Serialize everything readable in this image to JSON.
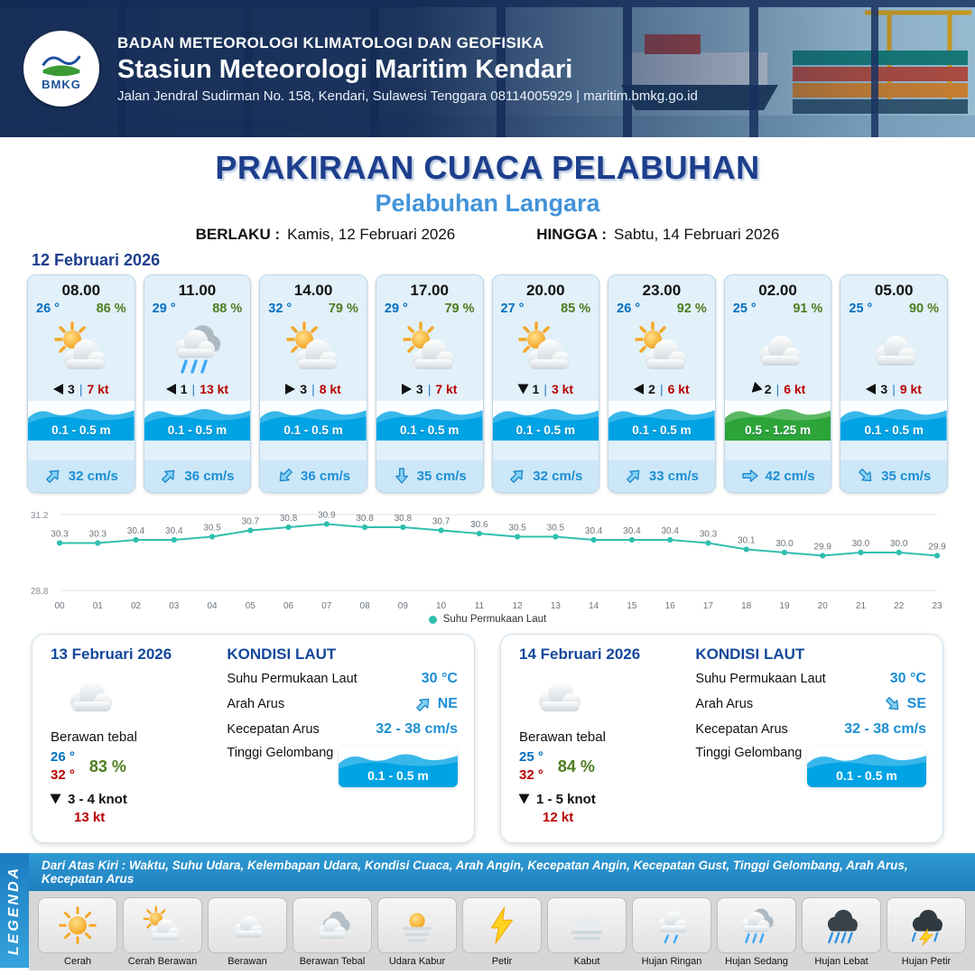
{
  "ui": {
    "separator": "|"
  },
  "header": {
    "logo_text": "BMKG",
    "agency": "BADAN METEOROLOGI KLIMATOLOGI DAN GEOFISIKA",
    "station": "Stasiun Meteorologi Maritim Kendari",
    "address": "Jalan Jendral Sudirman No. 158, Kendari, Sulawesi Tenggara  08114005929 | maritim.bmkg.go.id"
  },
  "title": "PRAKIRAAN CUACA PELABUHAN",
  "subtitle": "Pelabuhan Langara",
  "validity": {
    "berlaku_label": "BERLAKU :",
    "berlaku_value": "Kamis, 12 Februari 2026",
    "hingga_label": "HINGGA :",
    "hingga_value": "Sabtu, 14 Februari 2026"
  },
  "forecast_date": "12 Februari 2026",
  "hourly": [
    {
      "time": "08.00",
      "temp": "26 °",
      "humidity": "86 %",
      "icon": "cerah-berawan",
      "wind_dir": "w",
      "wind_gust": "3",
      "wind_speed": "7 kt",
      "wave": "0.1 - 0.5 m",
      "wave_level": "low",
      "current_dir": "ne",
      "current_speed": "32 cm/s"
    },
    {
      "time": "11.00",
      "temp": "29 °",
      "humidity": "88 %",
      "icon": "hujan-sedang",
      "wind_dir": "w",
      "wind_gust": "1",
      "wind_speed": "13 kt",
      "wave": "0.1 - 0.5 m",
      "wave_level": "low",
      "current_dir": "ne",
      "current_speed": "36 cm/s"
    },
    {
      "time": "14.00",
      "temp": "32 °",
      "humidity": "79 %",
      "icon": "cerah-berawan",
      "wind_dir": "e",
      "wind_gust": "3",
      "wind_speed": "8 kt",
      "wave": "0.1 - 0.5 m",
      "wave_level": "low",
      "current_dir": "sw",
      "current_speed": "36 cm/s"
    },
    {
      "time": "17.00",
      "temp": "29 °",
      "humidity": "79 %",
      "icon": "cerah-berawan",
      "wind_dir": "e",
      "wind_gust": "3",
      "wind_speed": "7 kt",
      "wave": "0.1 - 0.5 m",
      "wave_level": "low",
      "current_dir": "s",
      "current_speed": "35 cm/s"
    },
    {
      "time": "20.00",
      "temp": "27 °",
      "humidity": "85 %",
      "icon": "cerah-berawan",
      "wind_dir": "s",
      "wind_gust": "1",
      "wind_speed": "3 kt",
      "wave": "0.1 - 0.5 m",
      "wave_level": "low",
      "current_dir": "ne",
      "current_speed": "32 cm/s"
    },
    {
      "time": "23.00",
      "temp": "26 °",
      "humidity": "92 %",
      "icon": "cerah-berawan",
      "wind_dir": "w",
      "wind_gust": "2",
      "wind_speed": "6 kt",
      "wave": "0.1 - 0.5 m",
      "wave_level": "low",
      "current_dir": "ne",
      "current_speed": "33 cm/s"
    },
    {
      "time": "02.00",
      "temp": "25 °",
      "humidity": "91 %",
      "icon": "berawan",
      "wind_dir": "sw",
      "wind_gust": "2",
      "wind_speed": "6 kt",
      "wave": "0.5 - 1.25 m",
      "wave_level": "mid",
      "current_dir": "e",
      "current_speed": "42 cm/s"
    },
    {
      "time": "05.00",
      "temp": "25 °",
      "humidity": "90 %",
      "icon": "berawan",
      "wind_dir": "w",
      "wind_gust": "3",
      "wind_speed": "9 kt",
      "wave": "0.1 - 0.5 m",
      "wave_level": "low",
      "current_dir": "se",
      "current_speed": "35 cm/s"
    }
  ],
  "chart_data": {
    "type": "line",
    "series_name": "Suhu Permukaan Laut",
    "x": [
      "00",
      "01",
      "02",
      "03",
      "04",
      "05",
      "06",
      "07",
      "08",
      "09",
      "10",
      "11",
      "12",
      "13",
      "14",
      "15",
      "16",
      "17",
      "18",
      "19",
      "20",
      "21",
      "22",
      "23"
    ],
    "values": [
      30.3,
      30.3,
      30.4,
      30.4,
      30.5,
      30.7,
      30.8,
      30.9,
      30.8,
      30.8,
      30.7,
      30.6,
      30.5,
      30.5,
      30.4,
      30.4,
      30.4,
      30.3,
      30.1,
      30.0,
      29.9,
      30.0,
      30.0,
      29.9
    ],
    "ylim": [
      28.8,
      31.2
    ],
    "ylabel": "",
    "xlabel": "",
    "line_color": "#2fbfae",
    "legend_position": "bottom-center",
    "grid": "minimal"
  },
  "daily": [
    {
      "date": "13 Februari 2026",
      "icon": "berawan",
      "condition": "Berawan tebal",
      "temp_min": "26 °",
      "temp_max": "32 °",
      "humidity": "83 %",
      "wind_dir": "s",
      "wind_range": "3 - 4 knot",
      "gust": "13 kt",
      "sea_title": "KONDISI LAUT",
      "sst_label": "Suhu Permukaan Laut",
      "sst": "30 °C",
      "dir_label": "Arah Arus",
      "dir": "NE",
      "dir_code": "ne",
      "spd_label": "Kecepatan Arus",
      "spd": "32 - 38 cm/s",
      "wave_label": "Tinggi Gelombang",
      "wave": "0.1 - 0.5 m"
    },
    {
      "date": "14 Februari 2026",
      "icon": "berawan",
      "condition": "Berawan tebal",
      "temp_min": "25 °",
      "temp_max": "32 °",
      "humidity": "84 %",
      "wind_dir": "s",
      "wind_range": "1 - 5 knot",
      "gust": "12 kt",
      "sea_title": "KONDISI LAUT",
      "sst_label": "Suhu Permukaan Laut",
      "sst": "30 °C",
      "dir_label": "Arah Arus",
      "dir": "SE",
      "dir_code": "se",
      "spd_label": "Kecepatan Arus",
      "spd": "32 - 38 cm/s",
      "wave_label": "Tinggi Gelombang",
      "wave": "0.1 - 0.5 m"
    }
  ],
  "legend": {
    "title": "LEGENDA",
    "description": "Dari Atas Kiri : Waktu, Suhu Udara, Kelembapan Udara, Kondisi Cuaca, Arah Angin, Kecepatan Angin, Kecepatan Gust, Tinggi Gelombang, Arah Arus, Kecepatan Arus",
    "items": [
      {
        "label": "Cerah",
        "icon": "cerah"
      },
      {
        "label": "Cerah Berawan",
        "icon": "cerah-berawan"
      },
      {
        "label": "Berawan",
        "icon": "berawan"
      },
      {
        "label": "Berawan Tebal",
        "icon": "berawan-tebal"
      },
      {
        "label": "Udara Kabur",
        "icon": "udara-kabur"
      },
      {
        "label": "Petir",
        "icon": "petir"
      },
      {
        "label": "Kabut",
        "icon": "kabut"
      },
      {
        "label": "Hujan Ringan",
        "icon": "hujan-ringan"
      },
      {
        "label": "Hujan Sedang",
        "icon": "hujan-sedang"
      },
      {
        "label": "Hujan Lebat",
        "icon": "hujan-lebat"
      },
      {
        "label": "Hujan Petir",
        "icon": "hujan-petir"
      }
    ]
  }
}
